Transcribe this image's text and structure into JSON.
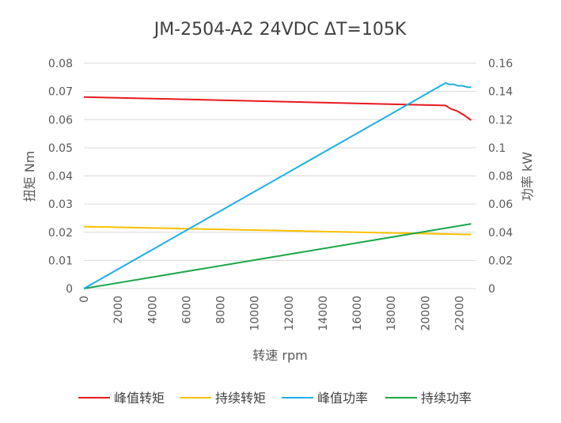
{
  "chart_data": {
    "type": "line",
    "title": "JM-2504-A2 24VDC ΔT=105K",
    "xlabel": "转速 rpm",
    "ylabel": "扭矩 Nm",
    "y2label": "功率 kW",
    "xlim": [
      0,
      23000
    ],
    "x_ticks": [
      0,
      2000,
      4000,
      6000,
      8000,
      10000,
      12000,
      14000,
      16000,
      18000,
      20000,
      22000
    ],
    "ylim": [
      0,
      0.08
    ],
    "y_ticks": [
      "0",
      "0.01",
      "0.02",
      "0.03",
      "0.04",
      "0.05",
      "0.06",
      "0.07",
      "0.08"
    ],
    "y2lim": [
      0,
      0.16
    ],
    "y2_ticks": [
      "0",
      "0.02",
      "0.04",
      "0.06",
      "0.08",
      "0.1",
      "0.12",
      "0.14",
      "0.16"
    ],
    "grid": true,
    "legend_position": "bottom",
    "series": [
      {
        "name": "峰值转矩",
        "axis": "left",
        "color": "#e8191d",
        "x": [
          0,
          21200,
          21500,
          21900,
          22300,
          22700
        ],
        "y": [
          0.068,
          0.065,
          0.0638,
          0.063,
          0.0615,
          0.0598
        ]
      },
      {
        "name": "持续转矩",
        "axis": "left",
        "color": "#ffc000",
        "x": [
          0,
          22700
        ],
        "y": [
          0.022,
          0.0192
        ]
      },
      {
        "name": "峰值功率",
        "axis": "right",
        "color": "#1eaee8",
        "x": [
          0,
          21200,
          21400,
          21700,
          21900,
          22200,
          22500,
          22700
        ],
        "y": [
          0,
          0.146,
          0.145,
          0.145,
          0.144,
          0.144,
          0.143,
          0.143
        ]
      },
      {
        "name": "持续功率",
        "axis": "right",
        "color": "#1ca84a",
        "x": [
          0,
          22700
        ],
        "y": [
          0,
          0.046
        ]
      }
    ]
  }
}
